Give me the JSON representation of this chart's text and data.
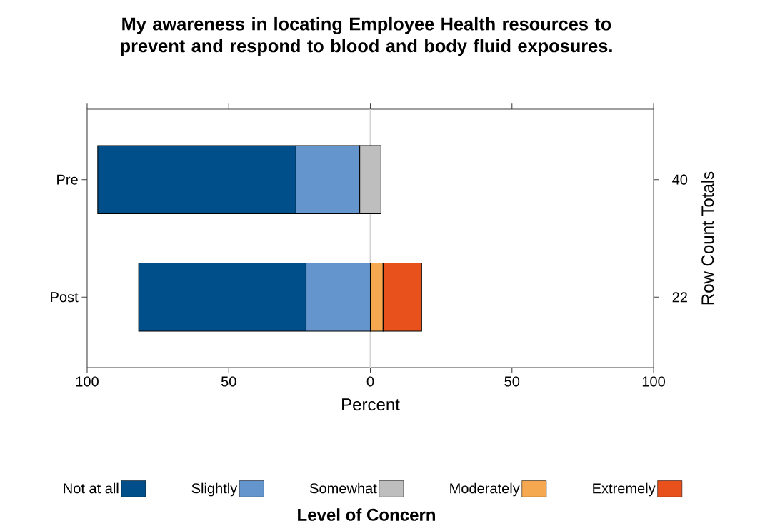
{
  "chart_data": {
    "type": "bar",
    "orientation": "horizontal",
    "title": "My awareness in locating Employee Health resources to prevent and respond to blood and body fluid exposures.",
    "xlabel": "Percent",
    "y2label": "Row Count Totals",
    "legend_title": "Level of Concern",
    "categories": [
      "Pre",
      "Post"
    ],
    "series": [
      {
        "name": "Not at all",
        "color": "#004f8a",
        "base": [
          -96.25,
          -81.8
        ],
        "values": [
          70.0,
          59.1
        ]
      },
      {
        "name": "Slightly",
        "color": "#6495cd",
        "base": [
          -26.25,
          -22.7
        ],
        "values": [
          22.5,
          22.7
        ]
      },
      {
        "name": "Somewhat",
        "color": "#bebebe",
        "base": [
          -3.75,
          null
        ],
        "values": [
          7.5,
          null
        ]
      },
      {
        "name": "Moderately",
        "color": "#f5a84f",
        "base": [
          null,
          0
        ],
        "values": [
          null,
          4.5
        ]
      },
      {
        "name": "Extremely",
        "color": "#e8501c",
        "base": [
          null,
          4.5
        ],
        "values": [
          null,
          13.6
        ]
      }
    ],
    "annotations": [
      "40",
      "22"
    ],
    "xlim": [
      -100,
      100
    ],
    "xticks": [
      {
        "value": -100,
        "label": "100"
      },
      {
        "value": -50,
        "label": "50"
      },
      {
        "value": 0,
        "label": "0"
      },
      {
        "value": 50,
        "label": "50"
      },
      {
        "value": 100,
        "label": "100"
      }
    ],
    "ref_lines": [
      {
        "axis": "x",
        "value": 0,
        "color": "#d3d3d3"
      }
    ],
    "legend": "bottom"
  }
}
